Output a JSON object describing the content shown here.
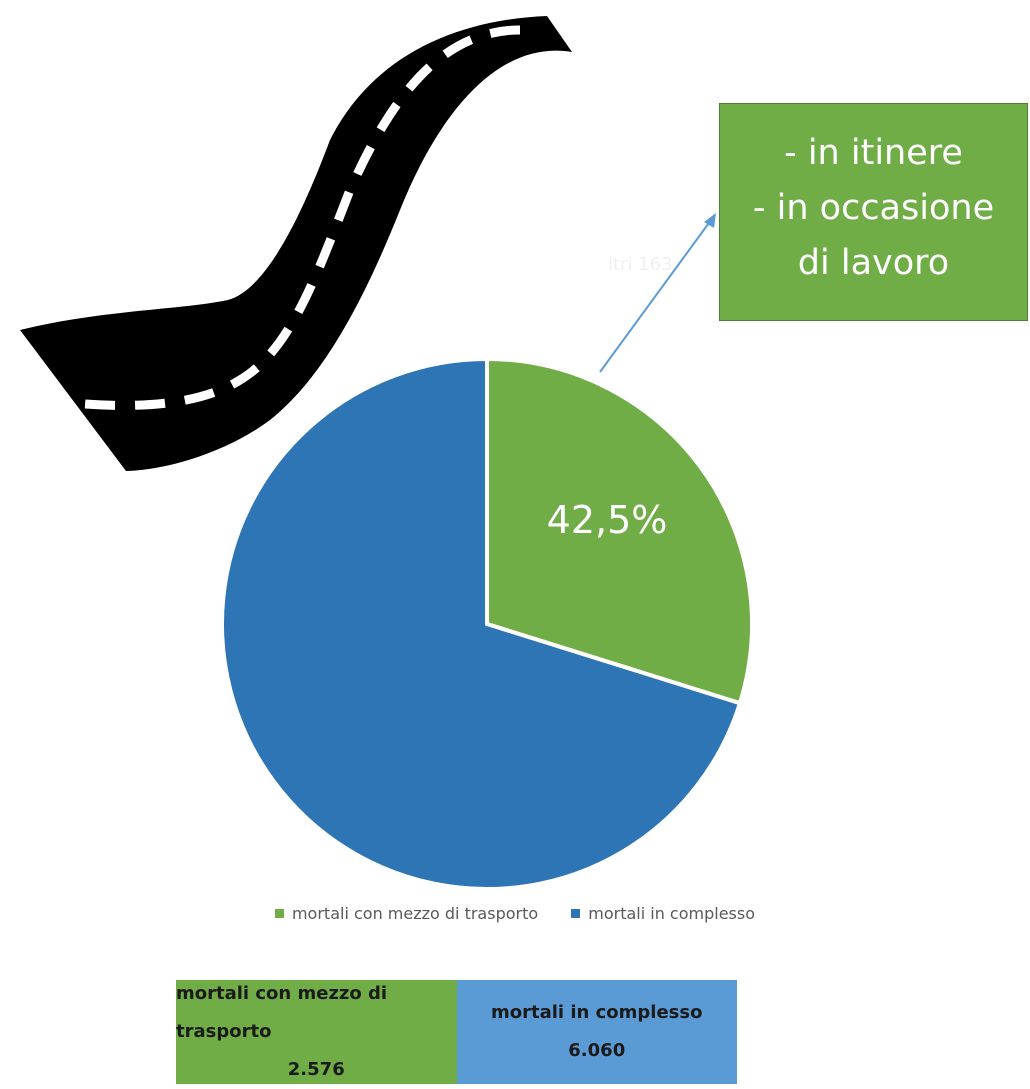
{
  "chart_data": {
    "type": "pie",
    "slices": [
      {
        "label": "mortali con mezzo di trasporto",
        "value": 2576,
        "color": "#71ad47"
      },
      {
        "label": "mortali in complesso",
        "value": 6060,
        "color": "#2e75b6"
      }
    ],
    "data_label": "42,5%",
    "legend": [
      "mortali con mezzo di trasporto",
      "mortali in complesso"
    ],
    "legend_placement": "bottom"
  },
  "callout": {
    "lines": [
      "- in itinere",
      "- in occasione",
      "di lavoro"
    ],
    "color": "#71ad47"
  },
  "legend": {
    "items": [
      {
        "label": "mortali con mezzo di trasporto",
        "color": "#71ad47"
      },
      {
        "label": "mortali in complesso",
        "color": "#2e75b6"
      }
    ]
  },
  "summary_table": {
    "cells": [
      {
        "label": "mortali con mezzo di trasporto",
        "value": "2.576",
        "color": "#71ad47"
      },
      {
        "label": "mortali in complesso",
        "value": "6.060",
        "color": "#5b9bd5"
      }
    ]
  },
  "illustration": {
    "icon": "road-icon"
  }
}
